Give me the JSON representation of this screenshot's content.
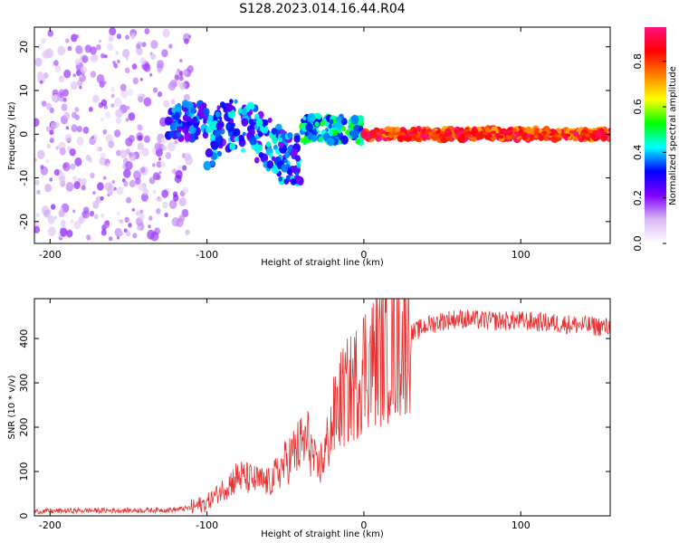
{
  "title": "S128.2023.014.16.44.R04",
  "chart_data": [
    {
      "type": "heatmap",
      "name": "spectrogram",
      "xlabel": "Height of straight line (km)",
      "ylabel": "Frequency (Hz)",
      "xlim": [
        -210,
        157
      ],
      "ylim": [
        -25,
        24.5
      ],
      "xticks": [
        -200,
        -100,
        0,
        100
      ],
      "xtick_labels": [
        "-200",
        "-100",
        "0",
        "100"
      ],
      "yticks": [
        20,
        10,
        0,
        -10,
        -20
      ],
      "ytick_labels": [
        "20",
        "10",
        "0",
        "-10",
        "-20"
      ],
      "colorbar": {
        "label": "Normalized spectral amplitude",
        "range": [
          0,
          0.95
        ],
        "ticks": [
          0.0,
          0.2,
          0.4,
          0.6,
          0.8
        ],
        "tick_labels": [
          "0.0",
          "0.2",
          "0.4",
          "0.6",
          "0.8"
        ],
        "colormap": [
          "#ffffff",
          "#d9b8f5",
          "#8000ff",
          "#0000ff",
          "#00ffff",
          "#00ff00",
          "#ffff00",
          "#ff8000",
          "#ff0000",
          "#ff1080"
        ]
      },
      "regions": [
        {
          "x": [
            -210,
            -110
          ],
          "freq_center": 0,
          "freq_spread": 24,
          "amplitude": [
            0.05,
            0.2
          ],
          "description": "noise"
        },
        {
          "x": [
            -125,
            -100
          ],
          "freq_center": 3,
          "freq_spread": 4,
          "amplitude": [
            0.2,
            0.4
          ]
        },
        {
          "x": [
            -100,
            -40
          ],
          "freq_center": 0,
          "freq_spread": 6,
          "amplitude": [
            0.2,
            0.45
          ]
        },
        {
          "x": [
            -40,
            0
          ],
          "freq_center": 1,
          "freq_spread": 3,
          "amplitude": [
            0.3,
            0.55
          ]
        },
        {
          "x": [
            0,
            157
          ],
          "freq_center": 0,
          "freq_spread": 1,
          "amplitude": [
            0.7,
            0.95
          ]
        }
      ]
    },
    {
      "type": "line",
      "name": "snr",
      "xlabel": "Height of straight line (km)",
      "ylabel": "SNR (10 * v/v)",
      "xlim": [
        -210,
        157
      ],
      "ylim": [
        0,
        490
      ],
      "xticks": [
        -200,
        -100,
        0,
        100
      ],
      "xtick_labels": [
        "-200",
        "-100",
        "0",
        "100"
      ],
      "yticks": [
        0,
        100,
        200,
        300,
        400
      ],
      "ytick_labels": [
        "0",
        "100",
        "200",
        "300",
        "400"
      ],
      "color": "#e83030",
      "series": [
        {
          "name": "SNR",
          "x": [
            -210,
            -180,
            -150,
            -120,
            -110,
            -100,
            -90,
            -80,
            -70,
            -60,
            -50,
            -40,
            -35,
            -30,
            -25,
            -20,
            -15,
            -10,
            -5,
            0,
            10,
            20,
            30,
            40,
            50,
            60,
            80,
            100,
            120,
            140,
            157
          ],
          "y": [
            10,
            12,
            12,
            14,
            18,
            30,
            60,
            90,
            80,
            75,
            120,
            160,
            170,
            100,
            140,
            210,
            260,
            280,
            300,
            340,
            360,
            380,
            410,
            430,
            440,
            445,
            440,
            440,
            435,
            430,
            425
          ]
        }
      ]
    }
  ]
}
